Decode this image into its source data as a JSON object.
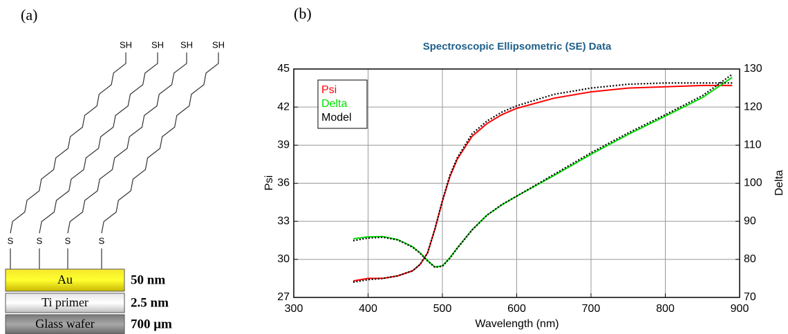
{
  "panel_a": {
    "label": "(a)",
    "sh_labels": [
      "SH",
      "SH",
      "SH",
      "SH"
    ],
    "s_labels": [
      "S",
      "S",
      "S",
      "S"
    ],
    "layers": [
      {
        "name": "Au",
        "thickness": "50 nm"
      },
      {
        "name": "Ti primer",
        "thickness": "2.5 nm"
      },
      {
        "name": "Glass wafer",
        "thickness": "700 μm"
      }
    ]
  },
  "panel_b_label": "(b)",
  "chart_data": {
    "type": "line",
    "title": "Spectroscopic Ellipsometric (SE) Data",
    "x_label": "Wavelength (nm)",
    "y_label": "Psi",
    "y2_label": "Delta",
    "x": [
      380,
      400,
      420,
      440,
      460,
      470,
      480,
      490,
      500,
      510,
      520,
      540,
      560,
      580,
      600,
      650,
      700,
      750,
      800,
      850,
      890
    ],
    "series": [
      {
        "name": "Psi",
        "color": "#ff0000",
        "style": "solid",
        "values": [
          28.3,
          28.5,
          28.5,
          28.7,
          29.1,
          29.6,
          30.5,
          32.4,
          34.6,
          36.5,
          37.9,
          39.7,
          40.7,
          41.4,
          41.9,
          42.7,
          43.2,
          43.5,
          43.6,
          43.7,
          43.7
        ]
      },
      {
        "name": "Delta",
        "color": "#00dd00",
        "style": "solid",
        "axis": "y2",
        "values": [
          85.4,
          85.9,
          86.0,
          85.2,
          83.3,
          81.7,
          79.7,
          78.0,
          78.3,
          80.4,
          83.0,
          87.8,
          91.6,
          94.3,
          96.6,
          102.0,
          107.6,
          112.8,
          117.6,
          122.5,
          127.8
        ]
      },
      {
        "name": "Model",
        "color": "#000000",
        "style": "dotted",
        "values": [
          28.2,
          28.4,
          28.5,
          28.7,
          29.1,
          29.6,
          30.5,
          32.4,
          34.6,
          36.6,
          38.0,
          39.9,
          40.9,
          41.6,
          42.1,
          43.0,
          43.5,
          43.8,
          43.9,
          43.9,
          43.9
        ]
      },
      {
        "color": "#000000",
        "style": "dotted",
        "axis": "y2",
        "values": [
          84.9,
          85.6,
          85.8,
          85.1,
          83.2,
          81.6,
          79.6,
          77.9,
          78.2,
          80.3,
          82.9,
          87.7,
          91.6,
          94.4,
          96.6,
          102.3,
          108.0,
          113.2,
          118.0,
          123.0,
          128.6
        ]
      }
    ],
    "xlim": [
      300,
      900
    ],
    "xticks": [
      300,
      400,
      500,
      600,
      700,
      800,
      900
    ],
    "ylim": [
      27,
      45
    ],
    "yticks": [
      27,
      30,
      33,
      36,
      39,
      42,
      45
    ],
    "y2lim": [
      70,
      130
    ],
    "y2ticks": [
      70,
      80,
      90,
      100,
      110,
      120,
      130
    ],
    "grid": true,
    "legend": "upper left"
  }
}
